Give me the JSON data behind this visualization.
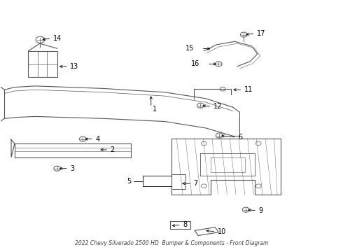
{
  "title": "2022 Chevy Silverado 2500 HD  Bumper & Components - Front Diagram",
  "bg_color": "#ffffff",
  "line_color": "#555555",
  "text_color": "#000000",
  "label_fontsize": 7,
  "title_fontsize": 5.5
}
